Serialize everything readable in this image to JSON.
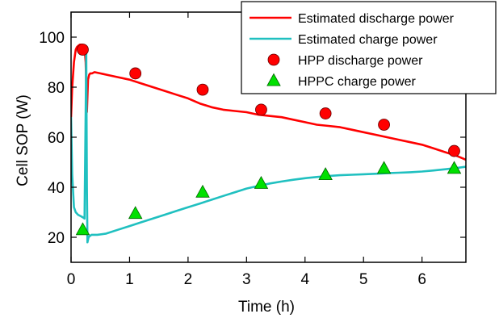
{
  "chart_data": {
    "type": "line",
    "xlabel": "Time (h)",
    "ylabel": "Cell SOP (W)",
    "xlim": [
      0,
      6.75
    ],
    "ylim": [
      10,
      110
    ],
    "xticks": [
      0,
      1,
      2,
      3,
      4,
      5,
      6
    ],
    "yticks": [
      20,
      40,
      60,
      80,
      100
    ],
    "grid": false,
    "legend_position": "top-right",
    "series": [
      {
        "name": "Estimated discharge power",
        "kind": "line",
        "color": "#ff0000",
        "x": [
          0.0,
          0.02,
          0.05,
          0.08,
          0.1,
          0.12,
          0.15,
          0.2,
          0.23,
          0.25,
          0.27,
          0.29,
          0.31,
          0.33,
          0.36,
          0.4,
          0.5,
          0.6,
          0.8,
          1.0,
          1.2,
          1.4,
          1.6,
          1.8,
          2.0,
          2.2,
          2.4,
          2.6,
          2.8,
          3.0,
          3.2,
          3.4,
          3.6,
          3.8,
          4.0,
          4.2,
          4.4,
          4.6,
          4.8,
          5.0,
          5.2,
          5.4,
          5.6,
          5.8,
          6.0,
          6.2,
          6.4,
          6.6,
          6.75
        ],
        "values": [
          68,
          80,
          90,
          95,
          96,
          96.5,
          97,
          97,
          96,
          90,
          70,
          83,
          85,
          85.5,
          85.5,
          86,
          85.5,
          85,
          84,
          83,
          81.5,
          80,
          78.5,
          77,
          75.5,
          73.5,
          72,
          71,
          70.5,
          70,
          69,
          68.5,
          68,
          67,
          66,
          65,
          64.5,
          64,
          63,
          62,
          61,
          60,
          59,
          58,
          57,
          55.5,
          54,
          52.5,
          51
        ]
      },
      {
        "name": "Estimated charge power",
        "kind": "line",
        "color": "#20c0c0",
        "x": [
          0.0,
          0.02,
          0.05,
          0.08,
          0.12,
          0.16,
          0.2,
          0.23,
          0.25,
          0.26,
          0.27,
          0.28,
          0.29,
          0.3,
          0.32,
          0.35,
          0.45,
          0.6,
          0.8,
          1.0,
          1.2,
          1.4,
          1.6,
          1.8,
          2.0,
          2.2,
          2.4,
          2.6,
          2.8,
          3.0,
          3.2,
          3.4,
          3.6,
          3.8,
          4.0,
          4.2,
          4.4,
          4.6,
          4.8,
          5.0,
          5.2,
          5.4,
          5.6,
          5.8,
          6.0,
          6.2,
          6.4,
          6.6,
          6.75
        ],
        "values": [
          68,
          45,
          32,
          30,
          29,
          28.5,
          28,
          27.5,
          70,
          95,
          40,
          18,
          19,
          20,
          20.5,
          21,
          21,
          21.5,
          23,
          24.5,
          26,
          27.5,
          29,
          30.5,
          32,
          33.5,
          35,
          36.5,
          38,
          39.5,
          40.5,
          41.5,
          42.3,
          43,
          43.6,
          44.1,
          44.5,
          44.8,
          45,
          45.2,
          45.4,
          45.6,
          45.8,
          46,
          46.3,
          46.7,
          47.2,
          47.7,
          48.2
        ]
      },
      {
        "name": "HPP discharge power",
        "kind": "scatter",
        "marker": "circle",
        "color": "#ff0000",
        "x": [
          0.2,
          1.1,
          2.25,
          3.25,
          4.35,
          5.35,
          6.55
        ],
        "values": [
          95,
          85.5,
          79,
          71,
          69.5,
          65,
          54.5
        ]
      },
      {
        "name": "HPPC charge power",
        "kind": "scatter",
        "marker": "triangle",
        "color": "#00e000",
        "x": [
          0.2,
          1.1,
          2.25,
          3.25,
          4.35,
          5.35,
          6.55
        ],
        "values": [
          23,
          29.5,
          38,
          41.5,
          45,
          47.5,
          47.5
        ]
      }
    ]
  }
}
